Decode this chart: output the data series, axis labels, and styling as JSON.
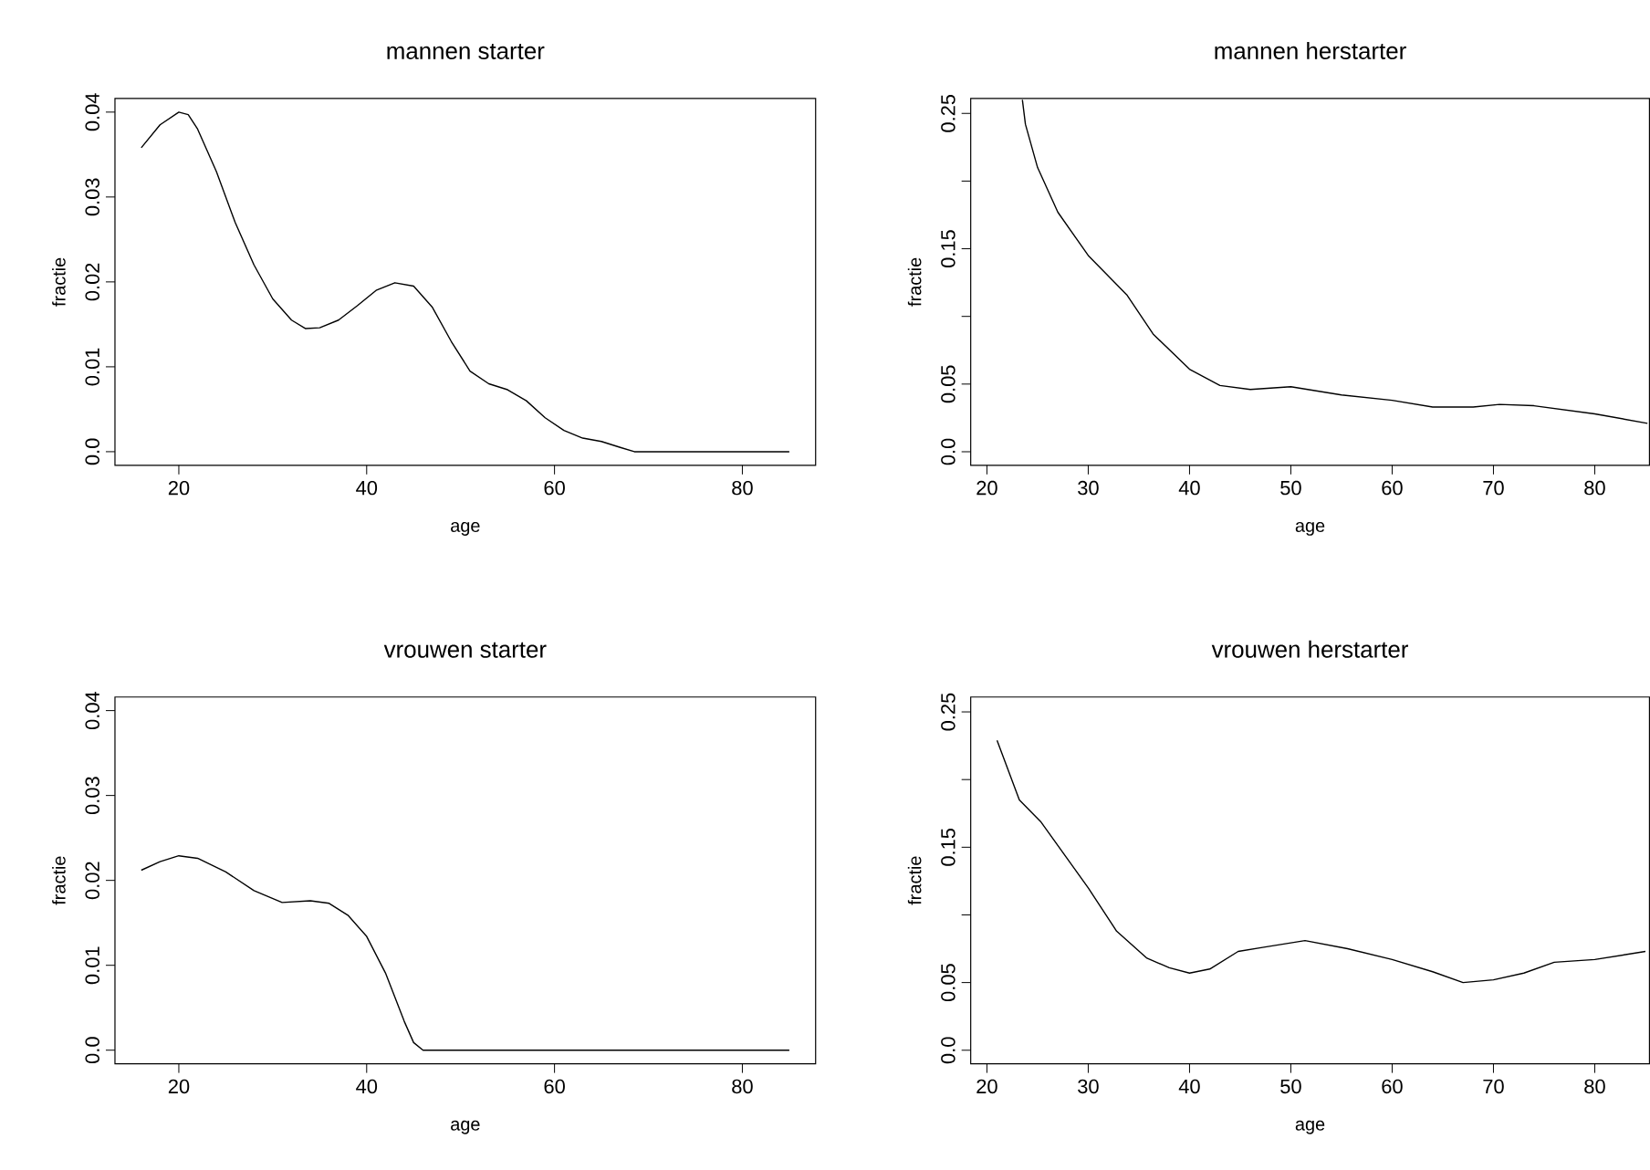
{
  "chart_data": [
    {
      "type": "line",
      "title": "mannen starter",
      "xlabel": "age",
      "ylabel": "fractie",
      "color": "#000000",
      "x": [
        16,
        18,
        20,
        21,
        22,
        24,
        26,
        28,
        30,
        32,
        33.5,
        35,
        37,
        39,
        41,
        43,
        45,
        47,
        49,
        51,
        53,
        55,
        57,
        59,
        61,
        63,
        65,
        67,
        68.5,
        85
      ],
      "values": [
        0.0358,
        0.0385,
        0.04,
        0.0397,
        0.038,
        0.033,
        0.027,
        0.022,
        0.018,
        0.0155,
        0.0145,
        0.0146,
        0.0155,
        0.0172,
        0.019,
        0.0199,
        0.0195,
        0.017,
        0.013,
        0.0095,
        0.008,
        0.0073,
        0.006,
        0.004,
        0.0025,
        0.0016,
        0.0012,
        0.0005,
        0,
        0
      ],
      "xlim": [
        13.2,
        87.8
      ],
      "ylim": [
        -0.0016,
        0.0416
      ],
      "xticks": [
        20,
        40,
        60,
        80
      ],
      "yticks": [
        {
          "value": 0,
          "label": "0.0"
        },
        0.01,
        0.02,
        0.03,
        0.04
      ]
    },
    {
      "type": "line",
      "title": "mannen herstarter",
      "xlabel": "age",
      "ylabel": "fractie",
      "color": "#000000",
      "x": [
        23.5,
        23.8,
        25,
        27,
        30,
        33.8,
        36.4,
        40,
        43,
        46,
        50,
        55,
        60,
        64,
        68,
        70.6,
        74,
        80,
        85.2
      ],
      "values": [
        0.26,
        0.242,
        0.21,
        0.177,
        0.145,
        0.116,
        0.087,
        0.061,
        0.049,
        0.046,
        0.048,
        0.042,
        0.038,
        0.033,
        0.033,
        0.035,
        0.034,
        0.028,
        0.021
      ],
      "xlim": [
        18.4,
        85.4
      ],
      "ylim": [
        -0.01,
        0.261
      ],
      "xticks": [
        20,
        30,
        40,
        50,
        60,
        70,
        80
      ],
      "yticks": [
        {
          "value": 0,
          "label": "0.0"
        },
        0.05,
        {
          "value": 0.1,
          "label": null
        },
        0.15,
        {
          "value": 0.2,
          "label": null
        },
        0.25
      ]
    },
    {
      "type": "line",
      "title": "vrouwen starter",
      "xlabel": "age",
      "ylabel": "fractie",
      "color": "#000000",
      "x": [
        16,
        18,
        20,
        22,
        25,
        28,
        31,
        34,
        36,
        38,
        40,
        42,
        44,
        45,
        46,
        85
      ],
      "values": [
        0.0212,
        0.0222,
        0.0229,
        0.0226,
        0.021,
        0.0188,
        0.0174,
        0.0176,
        0.0173,
        0.0159,
        0.0134,
        0.0091,
        0.0034,
        0.0009,
        0,
        0
      ],
      "xlim": [
        13.2,
        87.8
      ],
      "ylim": [
        -0.0016,
        0.0416
      ],
      "xticks": [
        20,
        40,
        60,
        80
      ],
      "yticks": [
        {
          "value": 0,
          "label": "0.0"
        },
        0.01,
        0.02,
        0.03,
        0.04
      ]
    },
    {
      "type": "line",
      "title": "vrouwen herstarter",
      "xlabel": "age",
      "ylabel": "fractie",
      "color": "#000000",
      "x": [
        21,
        23.2,
        25.3,
        30,
        32.8,
        35.8,
        38,
        40,
        42,
        44.8,
        47.2,
        51.4,
        55.6,
        60,
        64,
        67,
        70,
        73,
        76,
        80,
        85
      ],
      "values": [
        0.229,
        0.185,
        0.169,
        0.12,
        0.088,
        0.068,
        0.061,
        0.057,
        0.06,
        0.073,
        0.076,
        0.081,
        0.075,
        0.067,
        0.058,
        0.05,
        0.052,
        0.057,
        0.065,
        0.067,
        0.073
      ],
      "xlim": [
        18.4,
        85.4
      ],
      "ylim": [
        -0.01,
        0.261
      ],
      "xticks": [
        20,
        30,
        40,
        50,
        60,
        70,
        80
      ],
      "yticks": [
        {
          "value": 0,
          "label": "0.0"
        },
        0.05,
        {
          "value": 0.1,
          "label": null
        },
        0.15,
        {
          "value": 0.2,
          "label": null
        },
        0.25
      ]
    }
  ]
}
